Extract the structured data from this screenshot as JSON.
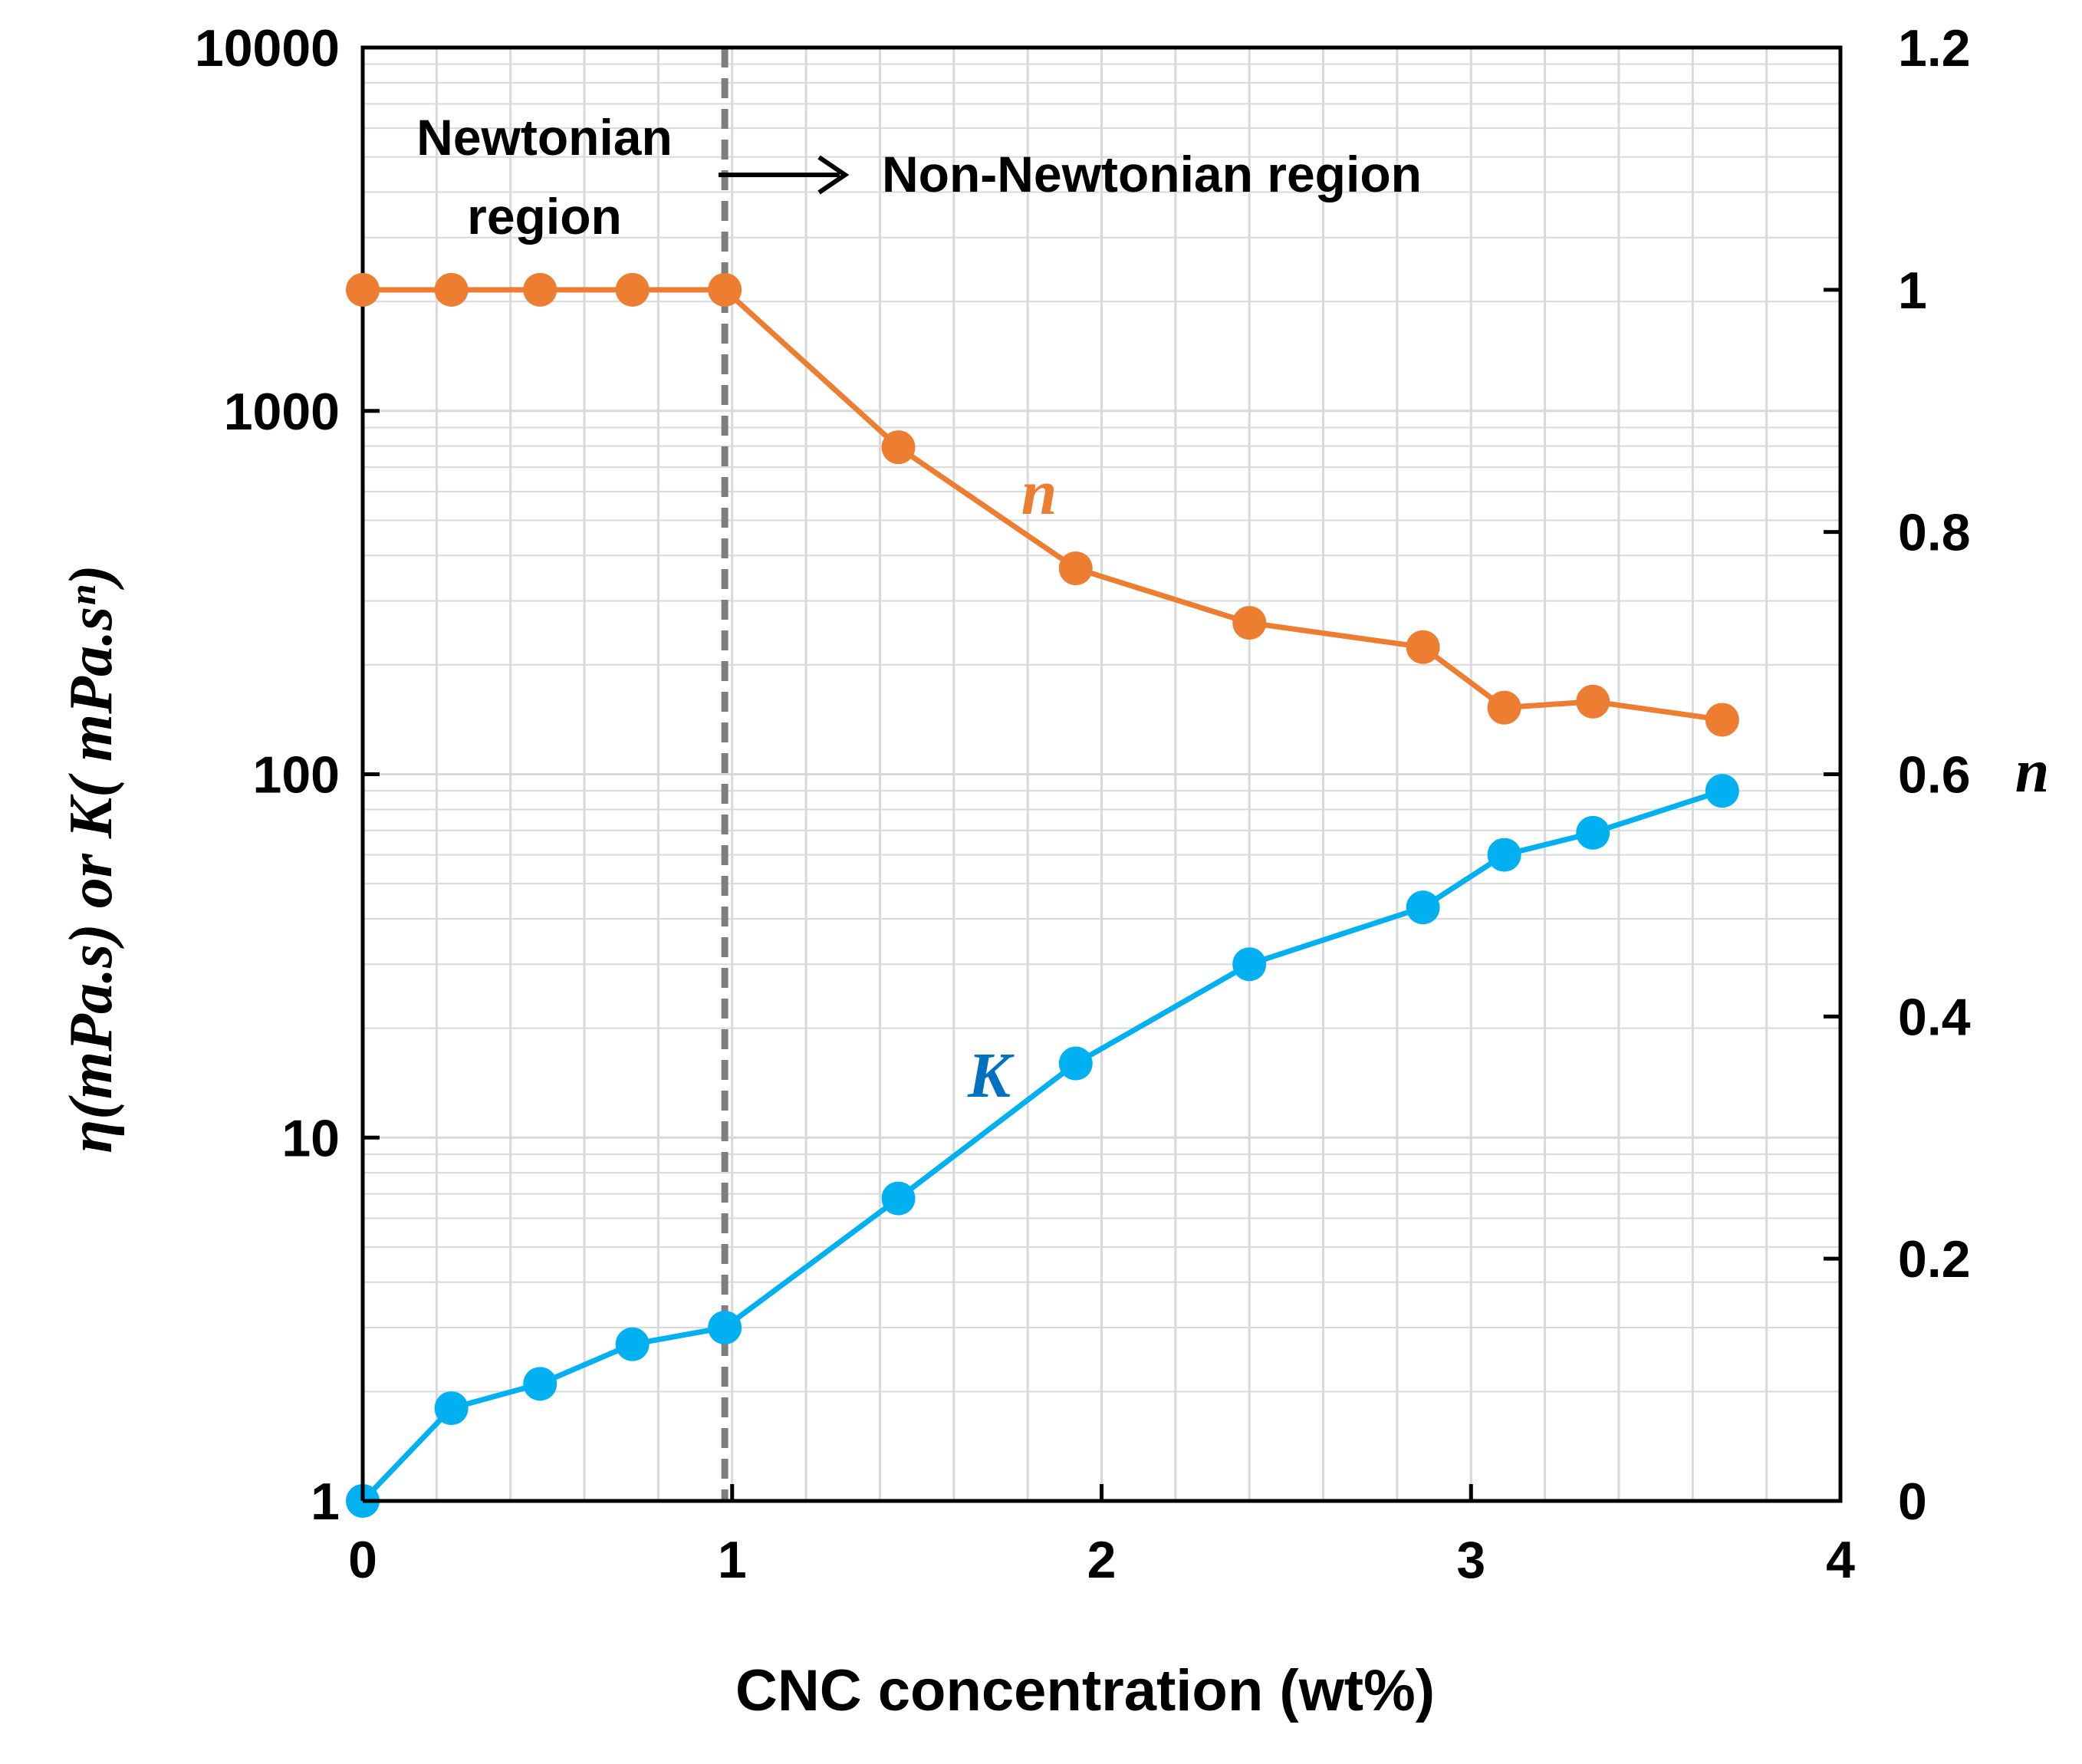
{
  "chart_data": {
    "type": "line",
    "x": [
      0,
      0.24,
      0.48,
      0.73,
      0.98,
      1.45,
      1.93,
      2.4,
      2.87,
      3.09,
      3.33,
      3.68
    ],
    "xlabel": "CNC concentration (wt%)",
    "xlim": [
      0,
      4
    ],
    "x_ticks": [
      "0",
      "1",
      "2",
      "3",
      "4"
    ],
    "y_left": {
      "label": "η(mPa.s) or K( mPa.sⁿ)",
      "scale": "log",
      "lim": [
        1,
        10000
      ],
      "ticks": [
        "1",
        "10",
        "100",
        "1000",
        "10000"
      ]
    },
    "y_right": {
      "label": "n",
      "scale": "linear",
      "lim": [
        0,
        1.2
      ],
      "ticks": [
        "0",
        "0.2",
        "0.4",
        "0.6",
        "0.8",
        "1",
        "1.2"
      ]
    },
    "grid": true,
    "series": [
      {
        "name": "n",
        "axis": "right",
        "color": "#ED7D31",
        "values": [
          1,
          1,
          1,
          1,
          1,
          0.87,
          0.77,
          0.725,
          0.705,
          0.655,
          0.66,
          0.645
        ]
      },
      {
        "name": "K",
        "axis": "left",
        "color": "#00B0F0",
        "label_color": "#0070C0",
        "values": [
          1,
          1.8,
          2.1,
          2.7,
          3.0,
          6.8,
          16,
          30,
          43,
          60,
          69,
          90
        ]
      }
    ],
    "divider": {
      "x": 0.98,
      "style": "dashed",
      "color": "#7F7F7F"
    },
    "annotations": {
      "newtonian_line1": "Newtonian",
      "newtonian_line2": "region",
      "non_newtonian": "Non-Newtonian region"
    }
  }
}
